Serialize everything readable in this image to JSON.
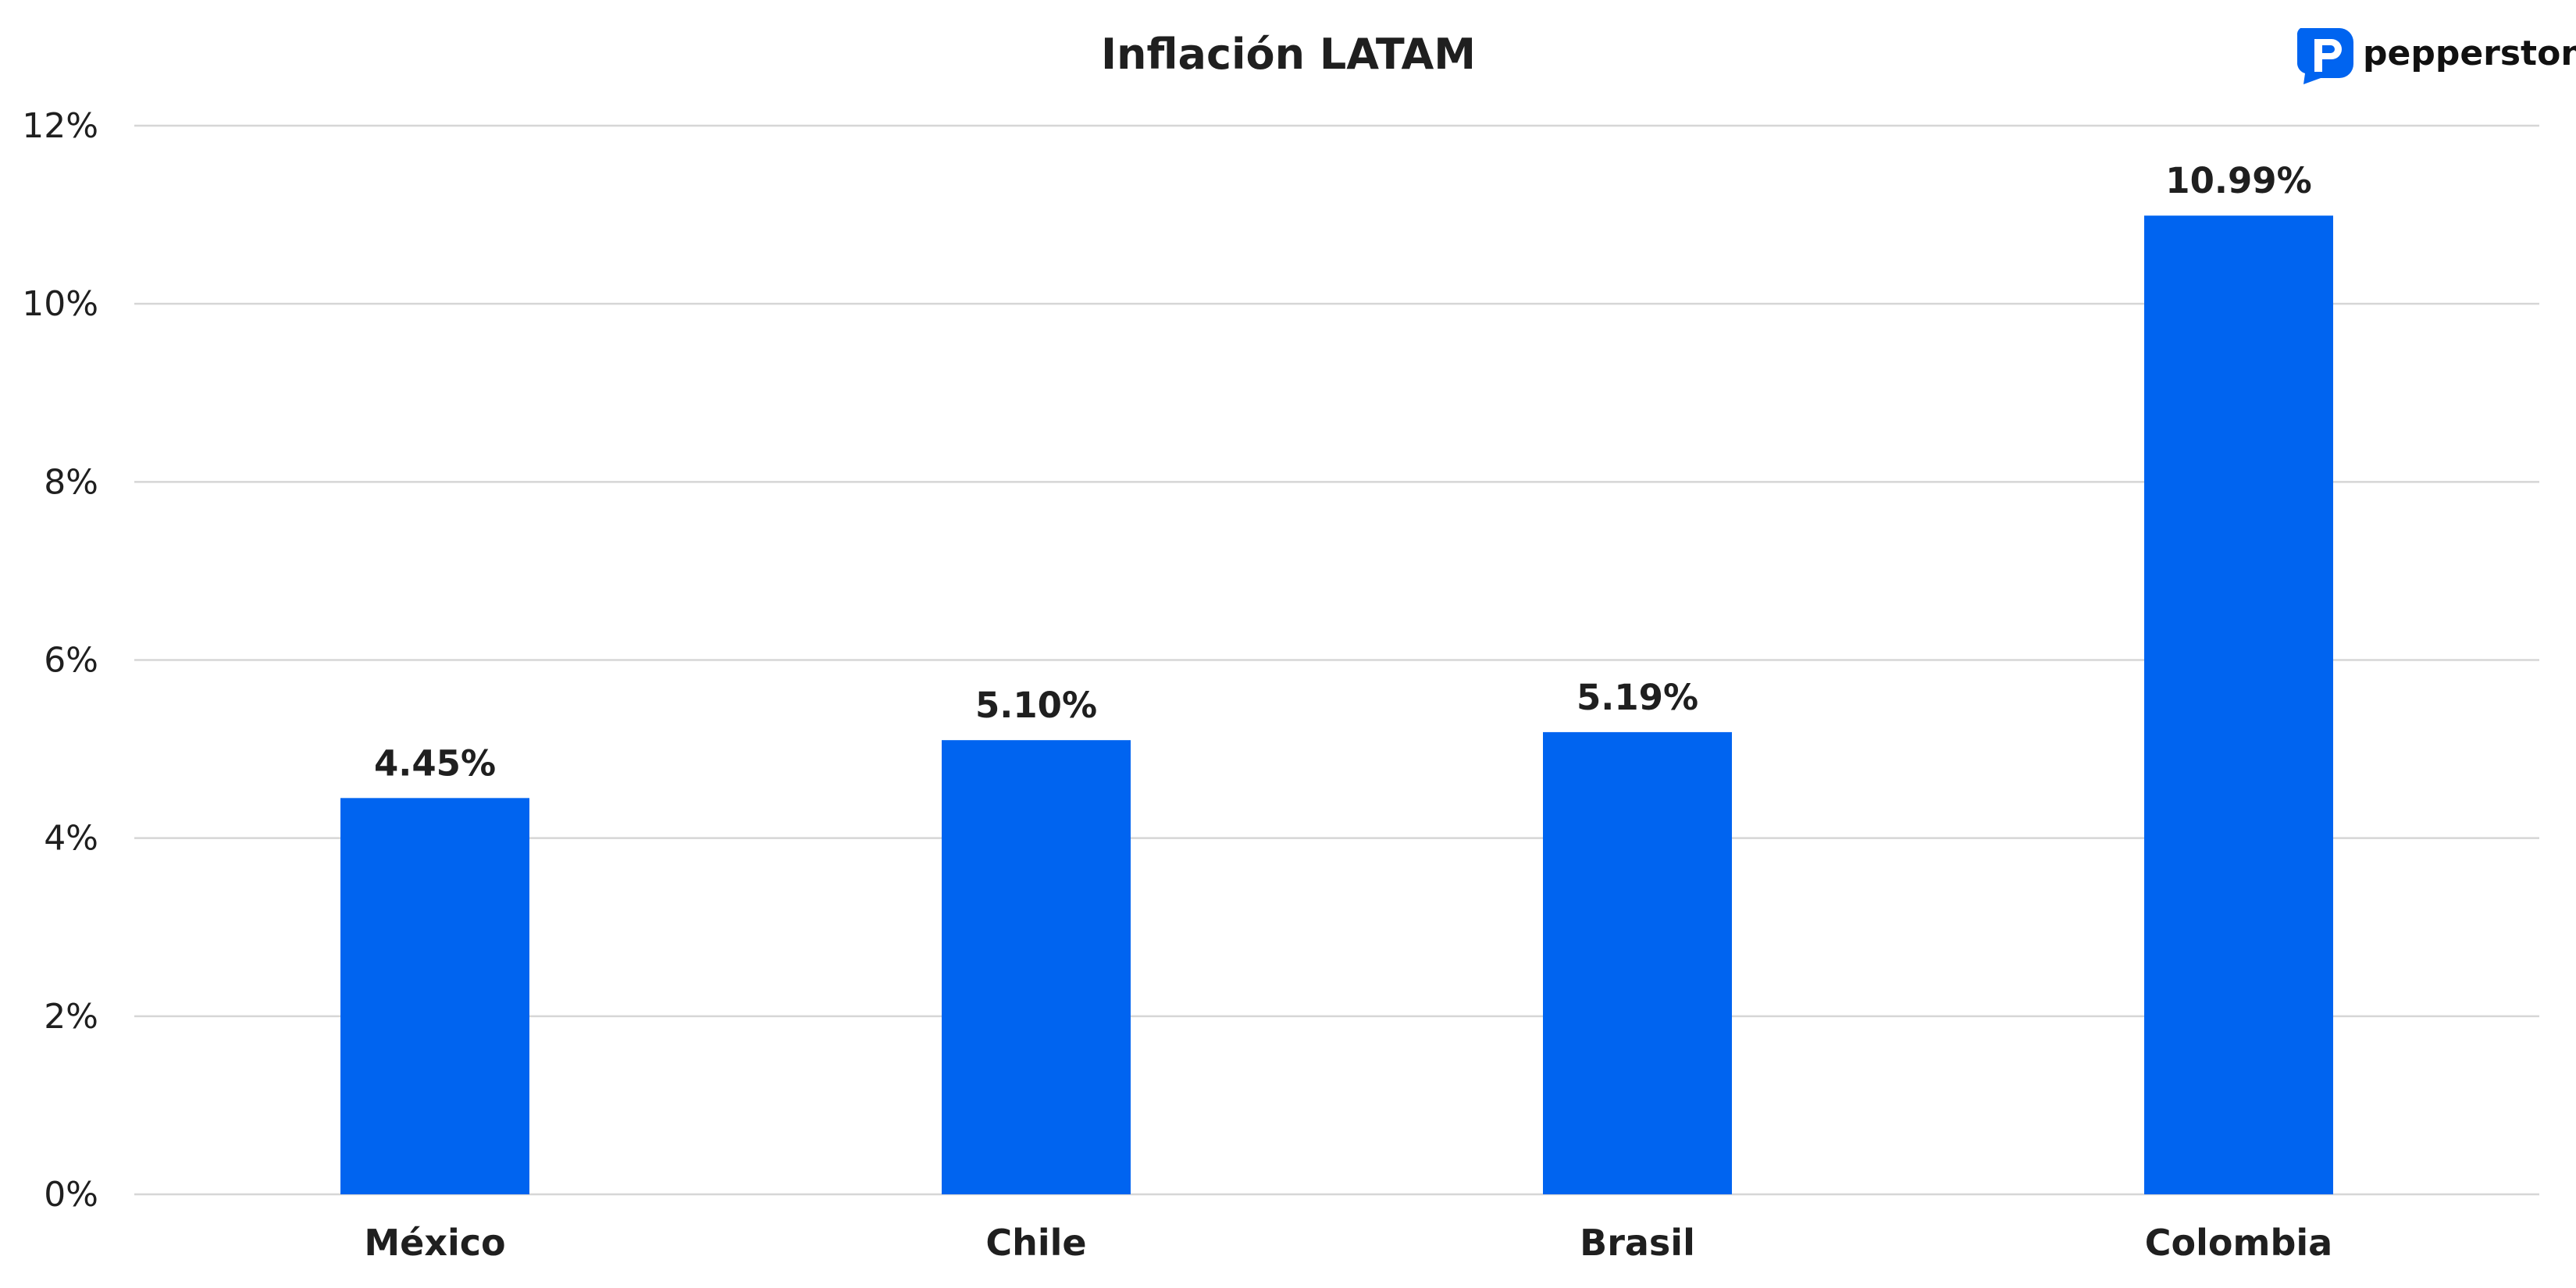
{
  "brand": {
    "name": "pepperstone",
    "icon": "pepperstone-logo-icon",
    "color": "#0064f0"
  },
  "chart_data": {
    "type": "bar",
    "title": "Inflación LATAM",
    "xlabel": "",
    "ylabel": "",
    "categories": [
      "México",
      "Chile",
      "Brasil",
      "Colombia"
    ],
    "values": [
      4.45,
      5.1,
      5.19,
      10.99
    ],
    "value_labels": [
      "4.45%",
      "5.10%",
      "5.19%",
      "10.99%"
    ],
    "ylim": [
      0,
      12
    ],
    "yticks": [
      0,
      2,
      4,
      6,
      8,
      10,
      12
    ],
    "ytick_labels": [
      "0%",
      "2%",
      "4%",
      "6%",
      "8%",
      "10%",
      "12%"
    ],
    "grid": true,
    "legend": "none",
    "bar_color": "#0064f0"
  }
}
